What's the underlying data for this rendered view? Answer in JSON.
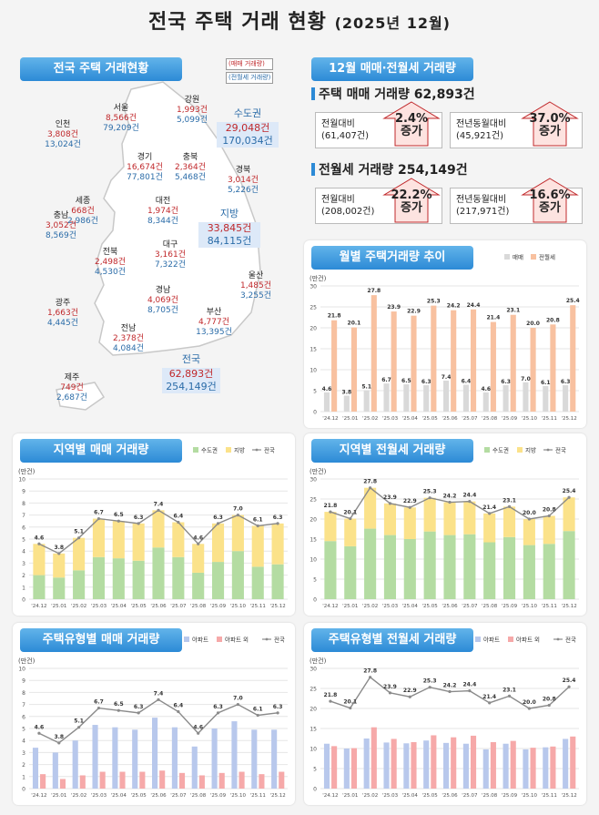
{
  "title": {
    "main": "전국 주택 거래 현황",
    "sub": "(2025년 12월)"
  },
  "map": {
    "header": "전국 주택 거래현황",
    "legend": [
      "(매매 거래량)",
      "(전월세 거래량)"
    ],
    "regions": [
      {
        "name": "강원",
        "sale": "1,993건",
        "rent": "5,099건"
      },
      {
        "name": "서울",
        "sale": "8,566건",
        "rent": "79,209건"
      },
      {
        "name": "인천",
        "sale": "3,808건",
        "rent": "13,024건"
      },
      {
        "name": "경기",
        "sale": "16,674건",
        "rent": "77,801건"
      },
      {
        "name": "충북",
        "sale": "2,364건",
        "rent": "5,468건"
      },
      {
        "name": "경북",
        "sale": "3,014건",
        "rent": "5,226건"
      },
      {
        "name": "세종",
        "sale": "668건",
        "rent": "2,986건"
      },
      {
        "name": "대전",
        "sale": "1,974건",
        "rent": "8,344건"
      },
      {
        "name": "충남",
        "sale": "3,052건",
        "rent": "8,569건"
      },
      {
        "name": "대구",
        "sale": "3,161건",
        "rent": "7,322건"
      },
      {
        "name": "전북",
        "sale": "2,498건",
        "rent": "4,530건"
      },
      {
        "name": "울산",
        "sale": "1,485건",
        "rent": "3,255건"
      },
      {
        "name": "경남",
        "sale": "4,069건",
        "rent": "8,705건"
      },
      {
        "name": "광주",
        "sale": "1,663건",
        "rent": "4,445건"
      },
      {
        "name": "부산",
        "sale": "4,777건",
        "rent": "13,395건"
      },
      {
        "name": "전남",
        "sale": "2,378건",
        "rent": "4,084건"
      },
      {
        "name": "제주",
        "sale": "749건",
        "rent": "2,687건"
      }
    ],
    "capital": {
      "name": "수도권",
      "sale": "29,048건",
      "rent": "170,034건"
    },
    "local": {
      "name": "지방",
      "sale": "33,845건",
      "rent": "84,115건"
    },
    "nation": {
      "name": "전국",
      "sale": "62,893건",
      "rent": "254,149건"
    }
  },
  "summary": {
    "header": "12월 매매·전월세 거래량",
    "sale_title": "주택 매매 거래량 62,893건",
    "rent_title": "전월세 거래량 254,149건",
    "sale_mom_label": "전월대비",
    "sale_mom_prev": "(61,407건)",
    "sale_mom_val": "2.4%",
    "sale_mom_dir": "증가",
    "sale_yoy_label": "전년동월대비",
    "sale_yoy_prev": "(45,921건)",
    "sale_yoy_val": "37.0%",
    "sale_yoy_dir": "증가",
    "rent_mom_label": "전월대비",
    "rent_mom_prev": "(208,002건)",
    "rent_mom_val": "22.2%",
    "rent_mom_dir": "증가",
    "rent_yoy_label": "전년동월대비",
    "rent_yoy_prev": "(217,971건)",
    "rent_yoy_val": "16.6%",
    "rent_yoy_dir": "증가"
  },
  "colors": {
    "sale": "#d9d9d9",
    "rent": "#f8c1a0",
    "capital": "#b4dca2",
    "local": "#fbe28a",
    "apt": "#b8c8ec",
    "nonapt": "#f6a9a9",
    "line": "#8a8a8a"
  },
  "chart_data": [
    {
      "type": "bar",
      "title": "월별 주택거래량 추이",
      "unit": "(만건)",
      "categories": [
        "'24.12",
        "'25.01",
        "'25.02",
        "'25.03",
        "'25.04",
        "'25.05",
        "'25.06",
        "'25.07",
        "'25.08",
        "'25.09",
        "'25.10",
        "'25.11",
        "'25.12"
      ],
      "series": [
        {
          "name": "매매",
          "values": [
            4.6,
            3.8,
            5.1,
            6.7,
            6.5,
            6.3,
            7.4,
            6.4,
            4.6,
            6.3,
            7.0,
            6.1,
            6.3
          ]
        },
        {
          "name": "전월세",
          "values": [
            21.8,
            20.1,
            27.8,
            23.9,
            22.9,
            25.3,
            24.2,
            24.4,
            21.4,
            23.1,
            20.0,
            20.8,
            25.4
          ]
        }
      ],
      "ylim": [
        0,
        30
      ],
      "yticks": [
        0,
        5,
        10,
        15,
        20,
        25,
        30
      ]
    },
    {
      "type": "bar",
      "stacked": true,
      "title": "지역별 매매 거래량",
      "unit": "(만건)",
      "categories": [
        "'24.12",
        "'25.01",
        "'25.02",
        "'25.03",
        "'25.04",
        "'25.05",
        "'25.06",
        "'25.07",
        "'25.08",
        "'25.09",
        "'25.10",
        "'25.11",
        "'25.12"
      ],
      "series": [
        {
          "name": "수도권",
          "values": [
            2.0,
            1.8,
            2.4,
            3.5,
            3.4,
            3.2,
            4.3,
            3.5,
            2.2,
            3.1,
            4.0,
            2.7,
            2.9
          ]
        },
        {
          "name": "지방",
          "values": [
            2.6,
            2.0,
            2.7,
            3.2,
            3.1,
            3.1,
            3.1,
            2.9,
            2.4,
            3.2,
            3.0,
            3.4,
            3.4
          ]
        },
        {
          "name": "전국",
          "type": "line",
          "values": [
            4.6,
            3.8,
            5.1,
            6.7,
            6.5,
            6.3,
            7.4,
            6.4,
            4.6,
            6.3,
            7.0,
            6.1,
            6.3
          ]
        }
      ],
      "ylim": [
        0,
        10
      ],
      "yticks": [
        0,
        1,
        2,
        3,
        4,
        5,
        6,
        7,
        8,
        9,
        10
      ]
    },
    {
      "type": "bar",
      "stacked": true,
      "title": "지역별 전월세 거래량",
      "unit": "(만건)",
      "categories": [
        "'24.12",
        "'25.01",
        "'25.02",
        "'25.03",
        "'25.04",
        "'25.05",
        "'25.06",
        "'25.07",
        "'25.08",
        "'25.09",
        "'25.10",
        "'25.11",
        "'25.12"
      ],
      "series": [
        {
          "name": "수도권",
          "values": [
            14.5,
            13.2,
            17.6,
            16.0,
            15.0,
            16.9,
            16.0,
            16.2,
            14.2,
            15.5,
            13.5,
            13.8,
            17.0
          ]
        },
        {
          "name": "지방",
          "values": [
            7.3,
            6.9,
            10.2,
            7.9,
            7.9,
            8.4,
            8.2,
            8.2,
            7.2,
            7.6,
            6.5,
            7.0,
            8.4
          ]
        },
        {
          "name": "전국",
          "type": "line",
          "values": [
            21.8,
            20.1,
            27.8,
            23.9,
            22.9,
            25.3,
            24.2,
            24.4,
            21.4,
            23.1,
            20.0,
            20.8,
            25.4
          ]
        }
      ],
      "ylim": [
        0,
        30
      ],
      "yticks": [
        0,
        5,
        10,
        15,
        20,
        25,
        30
      ]
    },
    {
      "type": "bar",
      "title": "주택유형별 매매 거래량",
      "unit": "(만건)",
      "categories": [
        "'24.12",
        "'25.01",
        "'25.02",
        "'25.03",
        "'25.04",
        "'25.05",
        "'25.06",
        "'25.07",
        "'25.08",
        "'25.09",
        "'25.10",
        "'25.11",
        "'25.12"
      ],
      "series": [
        {
          "name": "아파트",
          "values": [
            3.4,
            3.0,
            4.0,
            5.3,
            5.1,
            4.9,
            5.9,
            5.1,
            3.5,
            5.0,
            5.6,
            4.9,
            4.9
          ]
        },
        {
          "name": "아파트 외",
          "values": [
            1.2,
            0.8,
            1.1,
            1.4,
            1.4,
            1.4,
            1.5,
            1.3,
            1.1,
            1.3,
            1.4,
            1.2,
            1.4
          ]
        },
        {
          "name": "전국",
          "type": "line",
          "values": [
            4.6,
            3.8,
            5.1,
            6.7,
            6.5,
            6.3,
            7.4,
            6.4,
            4.6,
            6.3,
            7.0,
            6.1,
            6.3
          ]
        }
      ],
      "ylim": [
        0,
        10
      ],
      "yticks": [
        0,
        1,
        2,
        3,
        4,
        5,
        6,
        7,
        8,
        9,
        10
      ]
    },
    {
      "type": "bar",
      "title": "주택유형별 전월세 거래량",
      "unit": "(만건)",
      "categories": [
        "'24.12",
        "'25.01",
        "'25.02",
        "'25.03",
        "'25.04",
        "'25.05",
        "'25.06",
        "'25.07",
        "'25.08",
        "'25.09",
        "'25.10",
        "'25.11",
        "'25.12"
      ],
      "series": [
        {
          "name": "아파트",
          "values": [
            11.2,
            10.0,
            12.5,
            11.5,
            11.3,
            12.0,
            11.4,
            11.2,
            9.8,
            11.2,
            9.8,
            10.3,
            12.4
          ]
        },
        {
          "name": "아파트 외",
          "values": [
            10.6,
            10.1,
            15.3,
            12.4,
            11.6,
            13.3,
            12.8,
            13.2,
            11.6,
            11.9,
            10.2,
            10.5,
            13.0
          ]
        },
        {
          "name": "전국",
          "type": "line",
          "values": [
            21.8,
            20.1,
            27.8,
            23.9,
            22.9,
            25.3,
            24.2,
            24.4,
            21.4,
            23.1,
            20.0,
            20.8,
            25.4
          ]
        }
      ],
      "ylim": [
        0,
        30
      ],
      "yticks": [
        0,
        5,
        10,
        15,
        20,
        25,
        30
      ]
    }
  ]
}
